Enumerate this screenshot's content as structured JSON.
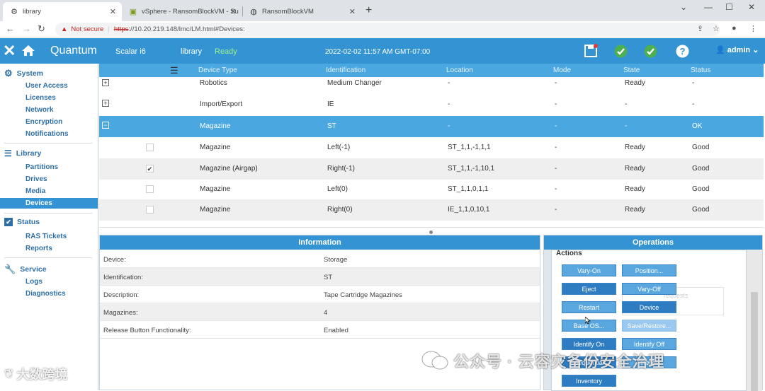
{
  "browser": {
    "tabs": [
      {
        "label": "library",
        "icon": "gear-icon",
        "active": true
      },
      {
        "label": "vSphere - RansomBlockVM - Su",
        "icon": "vsphere-icon",
        "active": false
      },
      {
        "label": "RansomBlockVM",
        "icon": "globe-icon",
        "active": false
      }
    ],
    "security_label": "Not secure",
    "url_scheme": "https",
    "url_rest": "://10.20.219.148/lmc/LM.html#Devices:"
  },
  "header": {
    "brand": "Quantum",
    "model": "Scalar i6",
    "library": "library",
    "status": "Ready",
    "datetime": "2022-02-02 11:57 AM GMT-07:00",
    "user": "admin"
  },
  "sidebar": {
    "groups": [
      {
        "label": "System",
        "icon": "gears-icon",
        "items": [
          "User Access",
          "Licenses",
          "Network",
          "Encryption",
          "Notifications"
        ]
      },
      {
        "label": "Library",
        "icon": "library-icon",
        "items": [
          "Partitions",
          "Drives",
          "Media",
          "Devices"
        ]
      },
      {
        "label": "Status",
        "icon": "checkbox-icon",
        "items": [
          "RAS Tickets",
          "Reports"
        ]
      },
      {
        "label": "Service",
        "icon": "wrench-icon",
        "items": [
          "Logs",
          "Diagnostics"
        ]
      }
    ],
    "active_item": "Devices"
  },
  "devices_table": {
    "columns": [
      "Device Type",
      "Identification",
      "Location",
      "Mode",
      "State",
      "Status"
    ],
    "rows": [
      {
        "expander": "+",
        "type": "Robotics",
        "id": "Medium Changer",
        "loc": "-",
        "mode": "-",
        "state": "Ready",
        "status": "-"
      },
      {
        "expander": "+",
        "type": "Import/Export",
        "id": "IE",
        "loc": "-",
        "mode": "-",
        "state": "-",
        "status": "-"
      },
      {
        "expander": "−",
        "type": "Magazine",
        "id": "ST",
        "loc": "-",
        "mode": "-",
        "state": "-",
        "status": "OK",
        "selected": true
      },
      {
        "check": "",
        "type": "Magazine",
        "id": "Left(-1)",
        "loc": "ST_1,1,-1,1,1",
        "mode": "-",
        "state": "Ready",
        "status": "Good"
      },
      {
        "check": "✔",
        "type": "Magazine (Airgap)",
        "id": "Right(-1)",
        "loc": "ST_1,1,-1,10,1",
        "mode": "-",
        "state": "Ready",
        "status": "Good"
      },
      {
        "check": "",
        "type": "Magazine",
        "id": "Left(0)",
        "loc": "ST_1,1,0,1,1",
        "mode": "-",
        "state": "Ready",
        "status": "Good"
      },
      {
        "check": "",
        "type": "Magazine",
        "id": "Right(0)",
        "loc": "IE_1,1,0,10,1",
        "mode": "-",
        "state": "Ready",
        "status": "Good"
      }
    ]
  },
  "information": {
    "title": "Information",
    "rows": [
      {
        "label": "Device:",
        "value": "Storage"
      },
      {
        "label": "Identification:",
        "value": "ST"
      },
      {
        "label": "Description:",
        "value": "Tape Cartridge Magazines"
      },
      {
        "label": "Magazines:",
        "value": "4"
      },
      {
        "label": "Release Button Functionality:",
        "value": "Enabled"
      }
    ]
  },
  "operations": {
    "title": "Operations",
    "actions_label": "Actions",
    "buttons": [
      "Vary-On",
      "Position...",
      "Eject",
      "Vary-Off",
      "Restart",
      "Device Snapshot...",
      "Base OS...",
      "Save/Restore...",
      "Identify On",
      "Identify Off",
      "Sequential",
      "Reset",
      "Inventory"
    ],
    "ghost_text": "requests"
  },
  "watermark": {
    "text1": "公众号 · 云容灾备份安全治理",
    "text2": "大数跨境"
  },
  "colors": {
    "header": "#3494d3",
    "table_header": "#4aa7e0",
    "ready": "#9ef08a"
  }
}
